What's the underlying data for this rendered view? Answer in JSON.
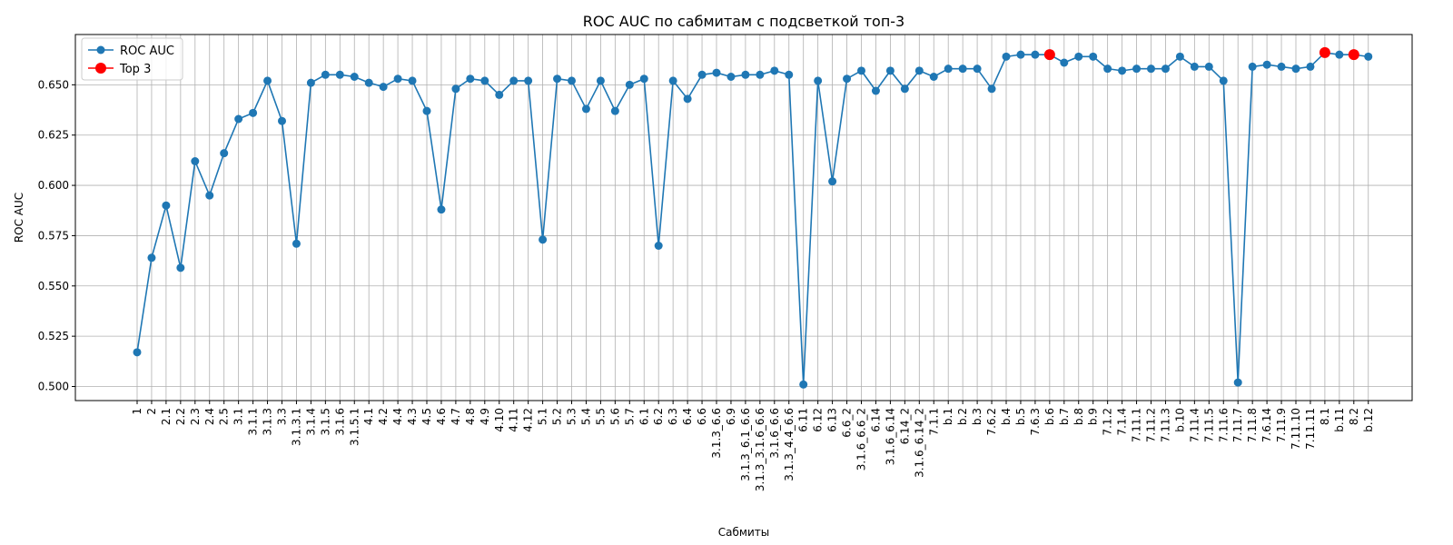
{
  "chart_data": {
    "type": "line",
    "title": "ROC AUC по сабмитам с подсветкой топ-3",
    "xlabel": "Сабмиты",
    "ylabel": "ROC AUC",
    "ylim": [
      0.493,
      0.675
    ],
    "yticks": [
      "0.500",
      "0.525",
      "0.550",
      "0.575",
      "0.600",
      "0.625",
      "0.650"
    ],
    "grid": true,
    "legend_placement": "top-left",
    "categories": [
      "1",
      "2",
      "2.1",
      "2.2",
      "2.3",
      "2.4",
      "2.5",
      "3.1",
      "3.1.1",
      "3.1.3",
      "3.3",
      "3.1.3.1",
      "3.1.4",
      "3.1.5",
      "3.1.6",
      "3.1.5.1",
      "4.1",
      "4.2",
      "4.4",
      "4.3",
      "4.5",
      "4.6",
      "4.7",
      "4.8",
      "4.9",
      "4.10",
      "4.11",
      "4.12",
      "5.1",
      "5.2",
      "5.3",
      "5.4",
      "5.5",
      "5.6",
      "5.7",
      "6.1",
      "6.2",
      "6.3",
      "6.4",
      "6.6",
      "3.1.3_6.6",
      "6.9",
      "3.1.3_6.1_6.6",
      "3.1.3_3.1.6_6.6",
      "3.1.6_6.6",
      "3.1.3_4.4_6.6",
      "6.11",
      "6.12",
      "6.13",
      "6.6_2",
      "3.1.6_6.6_2",
      "6.14",
      "3.1.6_6.14",
      "6.14_2",
      "3.1.6_6.14_2",
      "7.1.1",
      "b.1",
      "b.2",
      "b.3",
      "7.6.2",
      "b.4",
      "b.5",
      "7.6.3",
      "b.6",
      "b.7",
      "b.8",
      "b.9",
      "7.1.2",
      "7.1.4",
      "7.11.1",
      "7.11.2",
      "7.11.3",
      "b.10",
      "7.11.4",
      "7.11.5",
      "7.11.6",
      "7.11.7",
      "7.11.8",
      "7.6.14",
      "7.11.9",
      "7.11.10",
      "7.11.11",
      "8.1",
      "b.11",
      "8.2",
      "b.12"
    ],
    "series": [
      {
        "name": "ROC AUC",
        "color": "#1f77b4",
        "values": [
          0.517,
          0.564,
          0.59,
          0.559,
          0.612,
          0.595,
          0.616,
          0.633,
          0.636,
          0.652,
          0.632,
          0.571,
          0.651,
          0.655,
          0.655,
          0.654,
          0.651,
          0.649,
          0.653,
          0.652,
          0.637,
          0.588,
          0.648,
          0.653,
          0.652,
          0.645,
          0.652,
          0.652,
          0.573,
          0.653,
          0.652,
          0.638,
          0.652,
          0.637,
          0.65,
          0.653,
          0.57,
          0.652,
          0.643,
          0.655,
          0.656,
          0.654,
          0.655,
          0.655,
          0.657,
          0.655,
          0.501,
          0.652,
          0.602,
          0.653,
          0.657,
          0.647,
          0.657,
          0.648,
          0.657,
          0.654,
          0.658,
          0.658,
          0.658,
          0.648,
          0.664,
          0.665,
          0.665,
          0.665,
          0.661,
          0.664,
          0.664,
          0.658,
          0.657,
          0.658,
          0.658,
          0.658,
          0.664,
          0.659,
          0.659,
          0.652,
          0.502,
          0.659,
          0.66,
          0.659,
          0.658,
          0.659,
          0.666,
          0.665,
          0.665,
          0.664
        ]
      },
      {
        "name": "Top 3",
        "color": "#ff0000",
        "points": [
          {
            "category": "b.6",
            "value": 0.665
          },
          {
            "category": "8.1",
            "value": 0.666
          },
          {
            "category": "8.2",
            "value": 0.665
          }
        ]
      }
    ]
  }
}
